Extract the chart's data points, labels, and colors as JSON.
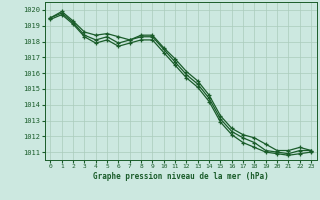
{
  "title": "Graphe pression niveau de la mer (hPa)",
  "background_color": "#cce8e0",
  "grid_color": "#aaccbb",
  "line_color": "#1a5c2a",
  "marker_color": "#1a5c2a",
  "text_color": "#1a5c2a",
  "ylim": [
    1010.5,
    1020.5
  ],
  "xlim": [
    -0.5,
    23.5
  ],
  "yticks": [
    1011,
    1012,
    1013,
    1014,
    1015,
    1016,
    1017,
    1018,
    1019,
    1020
  ],
  "xticks": [
    0,
    1,
    2,
    3,
    4,
    5,
    6,
    7,
    8,
    9,
    10,
    11,
    12,
    13,
    14,
    15,
    16,
    17,
    18,
    19,
    20,
    21,
    22,
    23
  ],
  "xtick_labels": [
    "0",
    "1",
    "2",
    "3",
    "4",
    "5",
    "6",
    "7",
    "8",
    "9",
    "10",
    "11",
    "12",
    "13",
    "14",
    "15",
    "16",
    "17",
    "18",
    "19",
    "20",
    "21",
    "22",
    "23"
  ],
  "series": [
    [
      1019.5,
      1019.8,
      1019.2,
      1018.4,
      1018.1,
      1018.3,
      1017.9,
      1018.1,
      1018.3,
      1018.3,
      1017.5,
      1016.7,
      1015.9,
      1015.3,
      1014.4,
      1013.1,
      1012.3,
      1011.9,
      1011.6,
      1011.1,
      1011.0,
      1010.9,
      1011.1,
      1011.1
    ],
    [
      1019.5,
      1019.9,
      1019.3,
      1018.6,
      1018.4,
      1018.5,
      1018.3,
      1018.1,
      1018.4,
      1018.4,
      1017.6,
      1016.9,
      1016.1,
      1015.5,
      1014.6,
      1013.3,
      1012.5,
      1012.1,
      1011.9,
      1011.5,
      1011.1,
      1011.1,
      1011.3,
      1011.1
    ],
    [
      1019.4,
      1019.7,
      1019.1,
      1018.3,
      1017.9,
      1018.1,
      1017.7,
      1017.9,
      1018.1,
      1018.1,
      1017.3,
      1016.5,
      1015.7,
      1015.1,
      1014.2,
      1012.9,
      1012.1,
      1011.6,
      1011.3,
      1011.0,
      1010.9,
      1010.8,
      1010.9,
      1011.0
    ]
  ]
}
